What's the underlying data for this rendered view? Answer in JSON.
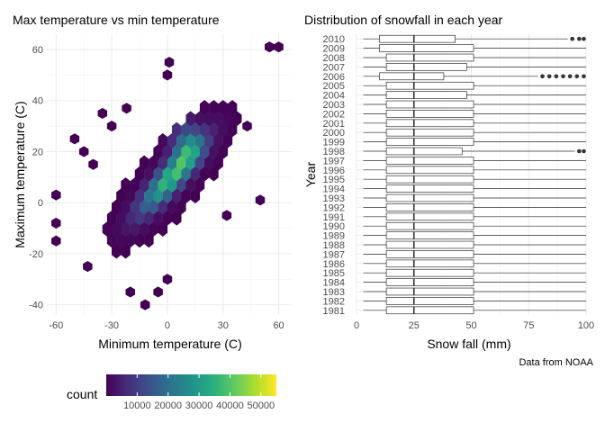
{
  "chart_data": [
    {
      "type": "heatmap",
      "subtype": "hexbin",
      "title": "Max temperature vs min temperature",
      "xlabel": "Minimum temperature (C)",
      "ylabel": "Maximum temperature (C)",
      "xlim": [
        -65,
        67
      ],
      "ylim": [
        -44,
        66
      ],
      "xticks": [
        -60,
        -30,
        0,
        30,
        60
      ],
      "yticks": [
        -40,
        -20,
        0,
        20,
        40,
        60
      ],
      "grid": true,
      "colorscale": "viridis",
      "legend": {
        "title": "count",
        "position": "bottom-left",
        "range": [
          0,
          55000
        ],
        "breaks": [
          10000,
          20000,
          30000,
          40000,
          50000
        ],
        "break_labels": [
          "10000",
          "20000",
          "30000",
          "40000",
          "50000"
        ]
      },
      "outliers": [
        {
          "x": 55,
          "y": 61,
          "count": 1
        },
        {
          "x": 60,
          "y": 61,
          "count": 1
        },
        {
          "x": 1,
          "y": 55,
          "count": 1
        },
        {
          "x": 0,
          "y": 50,
          "count": 1
        },
        {
          "x": -22,
          "y": 37,
          "count": 1
        },
        {
          "x": -35,
          "y": 35,
          "count": 1
        },
        {
          "x": -30,
          "y": 30,
          "count": 1
        },
        {
          "x": -50,
          "y": 25,
          "count": 1
        },
        {
          "x": -45,
          "y": 20,
          "count": 1
        },
        {
          "x": -40,
          "y": 15,
          "count": 1
        },
        {
          "x": -60,
          "y": 3,
          "count": 1
        },
        {
          "x": -60,
          "y": -8,
          "count": 1
        },
        {
          "x": -60,
          "y": -15,
          "count": 1
        },
        {
          "x": 43,
          "y": 30,
          "count": 1
        },
        {
          "x": 50,
          "y": 1,
          "count": 1
        },
        {
          "x": 32,
          "y": -5,
          "count": 1
        },
        {
          "x": -43,
          "y": -25,
          "count": 1
        },
        {
          "x": -20,
          "y": -35,
          "count": 1
        },
        {
          "x": -12,
          "y": -40,
          "count": 1
        },
        {
          "x": -5,
          "y": -35,
          "count": 1
        },
        {
          "x": 0,
          "y": -30,
          "count": 1
        }
      ]
    },
    {
      "type": "boxplot",
      "orientation": "horizontal",
      "title": "Distribution of snowfall in each year",
      "xlabel": "Snow fall (mm)",
      "ylabel": "Year",
      "xlim": [
        0,
        100
      ],
      "xticks": [
        0,
        25,
        50,
        75,
        100
      ],
      "grid": true,
      "caption": "Data from NOAA",
      "categories": [
        "1981",
        "1982",
        "1983",
        "1984",
        "1985",
        "1986",
        "1987",
        "1988",
        "1989",
        "1990",
        "1991",
        "1992",
        "1993",
        "1994",
        "1995",
        "1996",
        "1997",
        "1998",
        "1999",
        "2000",
        "2001",
        "2002",
        "2003",
        "2004",
        "2005",
        "2006",
        "2007",
        "2008",
        "2009",
        "2010"
      ],
      "boxes": [
        {
          "year": "1981",
          "min": 3,
          "q1": 13,
          "median": 25,
          "q3": 51,
          "max": 100,
          "outliers": []
        },
        {
          "year": "1982",
          "min": 3,
          "q1": 13,
          "median": 25,
          "q3": 51,
          "max": 100,
          "outliers": []
        },
        {
          "year": "1983",
          "min": 3,
          "q1": 13,
          "median": 25,
          "q3": 51,
          "max": 100,
          "outliers": []
        },
        {
          "year": "1984",
          "min": 3,
          "q1": 13,
          "median": 25,
          "q3": 51,
          "max": 100,
          "outliers": []
        },
        {
          "year": "1985",
          "min": 3,
          "q1": 13,
          "median": 25,
          "q3": 51,
          "max": 100,
          "outliers": []
        },
        {
          "year": "1986",
          "min": 3,
          "q1": 13,
          "median": 25,
          "q3": 51,
          "max": 100,
          "outliers": []
        },
        {
          "year": "1987",
          "min": 3,
          "q1": 13,
          "median": 25,
          "q3": 51,
          "max": 100,
          "outliers": []
        },
        {
          "year": "1988",
          "min": 3,
          "q1": 13,
          "median": 25,
          "q3": 51,
          "max": 100,
          "outliers": []
        },
        {
          "year": "1989",
          "min": 3,
          "q1": 13,
          "median": 25,
          "q3": 51,
          "max": 100,
          "outliers": []
        },
        {
          "year": "1990",
          "min": 3,
          "q1": 13,
          "median": 25,
          "q3": 51,
          "max": 100,
          "outliers": []
        },
        {
          "year": "1991",
          "min": 3,
          "q1": 13,
          "median": 25,
          "q3": 51,
          "max": 100,
          "outliers": []
        },
        {
          "year": "1992",
          "min": 3,
          "q1": 13,
          "median": 25,
          "q3": 51,
          "max": 100,
          "outliers": []
        },
        {
          "year": "1993",
          "min": 3,
          "q1": 13,
          "median": 25,
          "q3": 51,
          "max": 100,
          "outliers": []
        },
        {
          "year": "1994",
          "min": 3,
          "q1": 13,
          "median": 25,
          "q3": 51,
          "max": 100,
          "outliers": []
        },
        {
          "year": "1995",
          "min": 3,
          "q1": 13,
          "median": 25,
          "q3": 51,
          "max": 100,
          "outliers": []
        },
        {
          "year": "1996",
          "min": 3,
          "q1": 13,
          "median": 25,
          "q3": 51,
          "max": 100,
          "outliers": []
        },
        {
          "year": "1997",
          "min": 3,
          "q1": 13,
          "median": 25,
          "q3": 51,
          "max": 100,
          "outliers": []
        },
        {
          "year": "1998",
          "min": 3,
          "q1": 13,
          "median": 25,
          "q3": 46,
          "max": 95,
          "outliers": [
            97,
            99
          ]
        },
        {
          "year": "1999",
          "min": 3,
          "q1": 13,
          "median": 25,
          "q3": 51,
          "max": 100,
          "outliers": []
        },
        {
          "year": "2000",
          "min": 3,
          "q1": 13,
          "median": 25,
          "q3": 51,
          "max": 100,
          "outliers": []
        },
        {
          "year": "2001",
          "min": 3,
          "q1": 13,
          "median": 25,
          "q3": 51,
          "max": 100,
          "outliers": []
        },
        {
          "year": "2002",
          "min": 3,
          "q1": 13,
          "median": 25,
          "q3": 51,
          "max": 100,
          "outliers": []
        },
        {
          "year": "2003",
          "min": 3,
          "q1": 13,
          "median": 25,
          "q3": 51,
          "max": 100,
          "outliers": []
        },
        {
          "year": "2004",
          "min": 3,
          "q1": 13,
          "median": 25,
          "q3": 48,
          "max": 100,
          "outliers": []
        },
        {
          "year": "2005",
          "min": 3,
          "q1": 13,
          "median": 25,
          "q3": 51,
          "max": 100,
          "outliers": []
        },
        {
          "year": "2006",
          "min": 3,
          "q1": 10,
          "median": 25,
          "q3": 38,
          "max": 79,
          "outliers": [
            81,
            84,
            87,
            90,
            93,
            96,
            99
          ]
        },
        {
          "year": "2007",
          "min": 3,
          "q1": 13,
          "median": 25,
          "q3": 48,
          "max": 100,
          "outliers": []
        },
        {
          "year": "2008",
          "min": 3,
          "q1": 13,
          "median": 25,
          "q3": 51,
          "max": 100,
          "outliers": []
        },
        {
          "year": "2009",
          "min": 3,
          "q1": 10,
          "median": 25,
          "q3": 51,
          "max": 100,
          "outliers": []
        },
        {
          "year": "2010",
          "min": 3,
          "q1": 10,
          "median": 25,
          "q3": 43,
          "max": 92,
          "outliers": [
            94,
            97,
            99
          ]
        }
      ]
    }
  ]
}
